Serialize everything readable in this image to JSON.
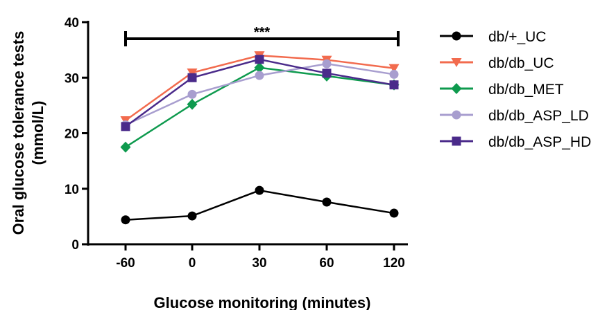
{
  "chart_data": {
    "type": "line",
    "xlabel": "Glucose monitoring (minutes)",
    "ylabel_lines": [
      "Oral glucose tolerance tests",
      "(mmol/L)"
    ],
    "categories": [
      "-60",
      "0",
      "30",
      "60",
      "120"
    ],
    "ylim": [
      0,
      40
    ],
    "yticks": [
      "0",
      "10",
      "20",
      "30",
      "40"
    ],
    "grid": false,
    "legend_position": "right",
    "annotation": "***",
    "series": [
      {
        "name": "db/+_UC",
        "color": "#000000",
        "marker": "circle",
        "values": [
          4.4,
          5.1,
          9.7,
          7.6,
          5.6
        ]
      },
      {
        "name": "db/db_UC",
        "color": "#f26b4e",
        "marker": "triangle-down",
        "values": [
          22.3,
          30.9,
          34.0,
          33.2,
          31.7
        ]
      },
      {
        "name": "db/db_MET",
        "color": "#0e9a4e",
        "marker": "diamond",
        "values": [
          17.5,
          25.2,
          31.8,
          30.3,
          28.7
        ]
      },
      {
        "name": "db/db_ASP_LD",
        "color": "#a89ecf",
        "marker": "circle",
        "values": [
          21.5,
          27.0,
          30.4,
          32.5,
          30.6
        ]
      },
      {
        "name": "db/db_ASP_HD",
        "color": "#4a2a8a",
        "marker": "square",
        "values": [
          21.2,
          30.0,
          33.3,
          30.8,
          28.7
        ]
      }
    ]
  }
}
